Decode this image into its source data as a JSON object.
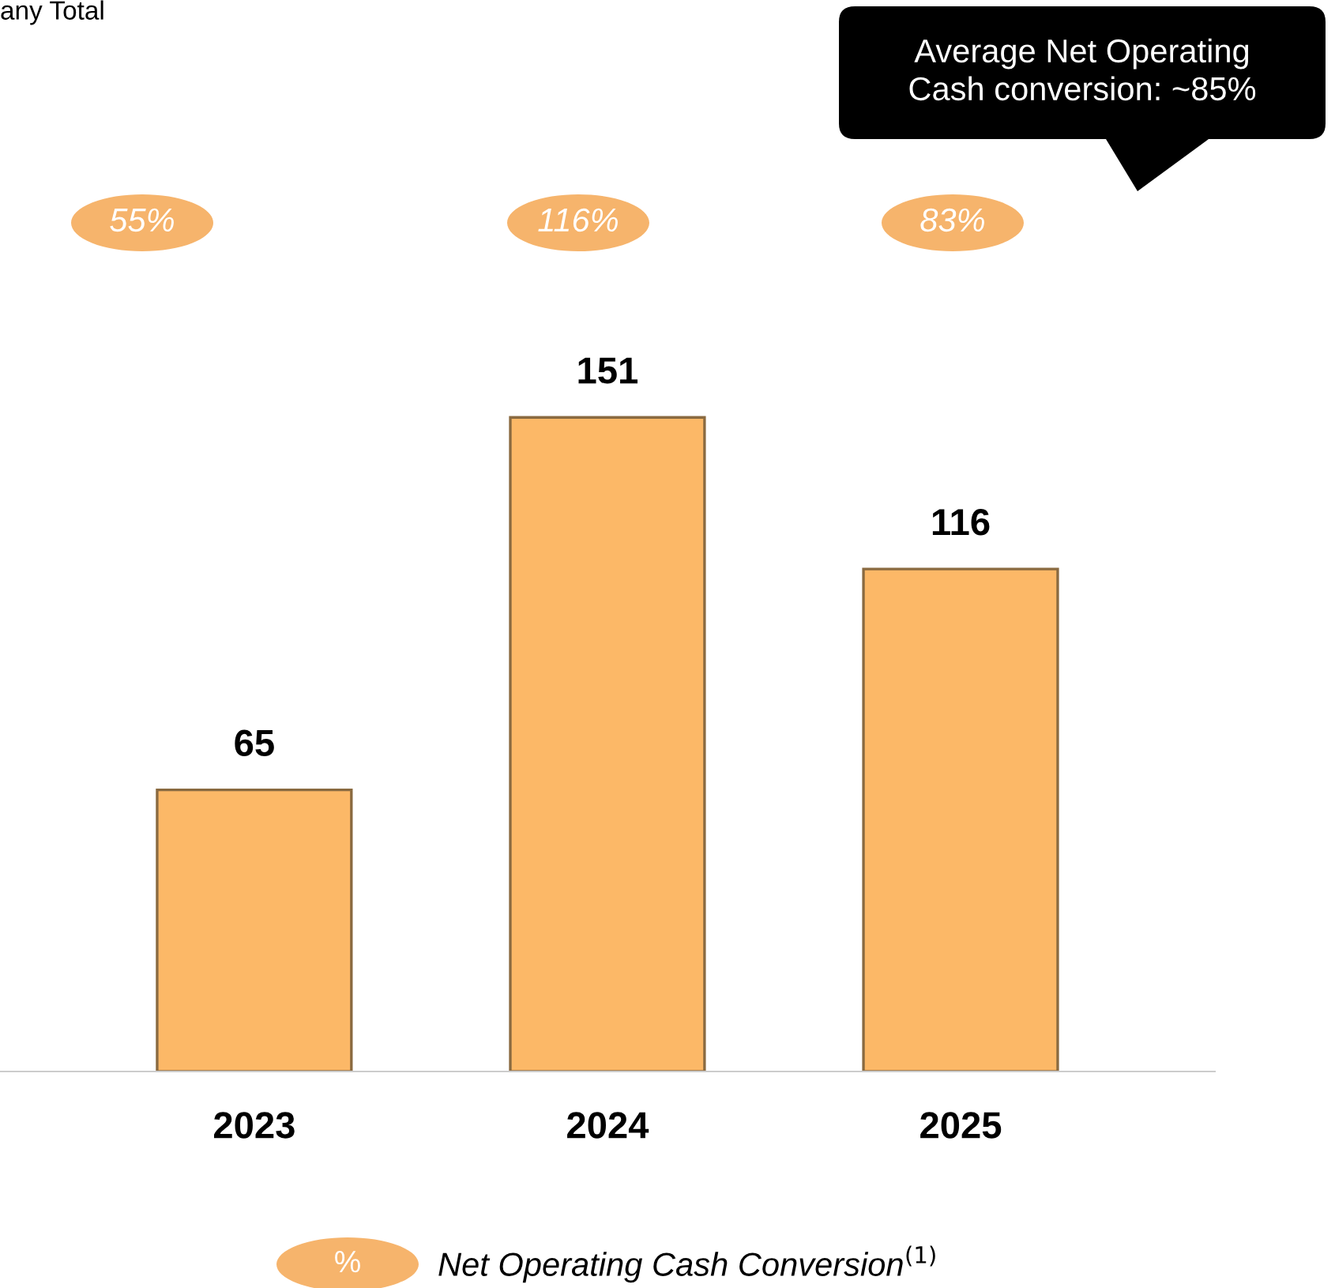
{
  "chart_data": {
    "type": "bar",
    "categories": [
      "2023",
      "2024",
      "2025"
    ],
    "values": [
      65,
      151,
      116
    ],
    "color": "#fcb867",
    "data_labels": true,
    "grid": false,
    "legend": false,
    "annotations": [
      "any Total",
      "Average Net Operating\nCash conversion: ~85%",
      "55%",
      "116%",
      "83%",
      "%",
      "Net Operating Cash Conversion$^{(1)}$"
    ]
  }
}
